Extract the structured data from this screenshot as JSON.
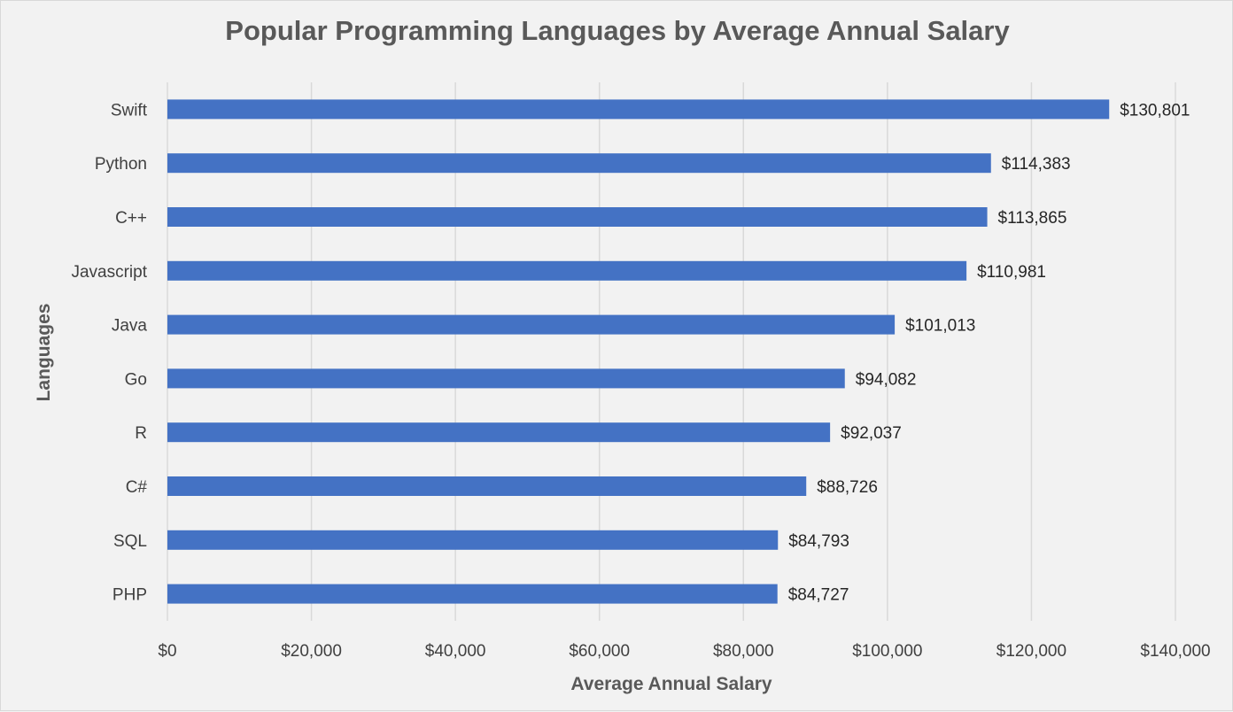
{
  "chart_data": {
    "type": "bar",
    "orientation": "horizontal",
    "title": "Popular Programming Languages by Average Annual Salary",
    "xlabel": "Average Annual Salary",
    "ylabel": "Languages",
    "categories": [
      "Swift",
      "Python",
      "C++",
      "Javascript",
      "Java",
      "Go",
      "R",
      "C#",
      "SQL",
      "PHP"
    ],
    "values": [
      130801,
      114383,
      113865,
      110981,
      101013,
      94082,
      92037,
      88726,
      84793,
      84727
    ],
    "data_labels": [
      "$130,801",
      "$114,383",
      "$113,865",
      "$110,981",
      "$101,013",
      "$94,082",
      "$92,037",
      "$88,726",
      "$84,793",
      "$84,727"
    ],
    "xlim": [
      0,
      140000
    ],
    "xticks": [
      0,
      20000,
      40000,
      60000,
      80000,
      100000,
      120000,
      140000
    ],
    "xtick_labels": [
      "$0",
      "$20,000",
      "$40,000",
      "$60,000",
      "$80,000",
      "$100,000",
      "$120,000",
      "$140,000"
    ],
    "grid": "vertical",
    "legend": "none",
    "bar_color": "#4472c4"
  }
}
